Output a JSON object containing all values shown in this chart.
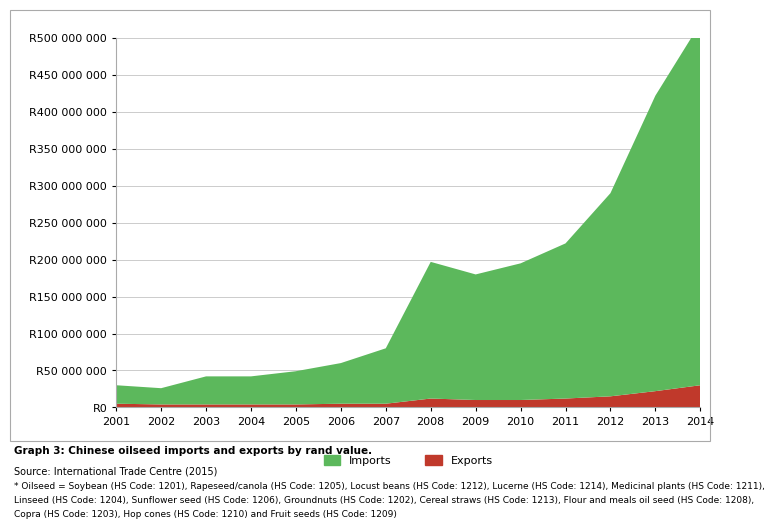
{
  "years": [
    2001,
    2002,
    2003,
    2004,
    2005,
    2006,
    2007,
    2008,
    2009,
    2010,
    2011,
    2012,
    2013,
    2014
  ],
  "imports": [
    25000000,
    22000000,
    38000000,
    38000000,
    45000000,
    55000000,
    75000000,
    185000000,
    170000000,
    185000000,
    210000000,
    275000000,
    400000000,
    490000000
  ],
  "exports": [
    5000000,
    4000000,
    4000000,
    4000000,
    4000000,
    5000000,
    5000000,
    12000000,
    10000000,
    10000000,
    12000000,
    15000000,
    22000000,
    30000000
  ],
  "imports_color": "#5CB85C",
  "exports_color": "#C0392B",
  "bg_color": "#FFFFFF",
  "ylim": [
    0,
    500000000
  ],
  "ytick_step": 50000000,
  "legend_labels": [
    "Imports",
    "Exports"
  ],
  "title": "Graph 3: Chinese oilseed imports and exports by rand value.",
  "source": "Source: International Trade Centre (2015)",
  "footnote_line1": "* Oilseed = Soybean (HS Code: 1201), Rapeseed/canola (HS Code: 1205), Locust beans (HS Code: 1212), Lucerne (HS Code: 1214), Medicinal plants (HS Code: 1211),",
  "footnote_line2": "Linseed (HS Code: 1204), Sunflower seed (HS Code: 1206), Groundnuts (HS Code: 1202), Cereal straws (HS Code: 1213), Flour and meals oil seed (HS Code: 1208),",
  "footnote_line3": "Copra (HS Code: 1203), Hop cones (HS Code: 1210) and Fruit seeds (HS Code: 1209)",
  "grid_color": "#CCCCCC",
  "border_color": "#AAAAAA",
  "tick_fontsize": 8,
  "anno_fontsize": 7
}
